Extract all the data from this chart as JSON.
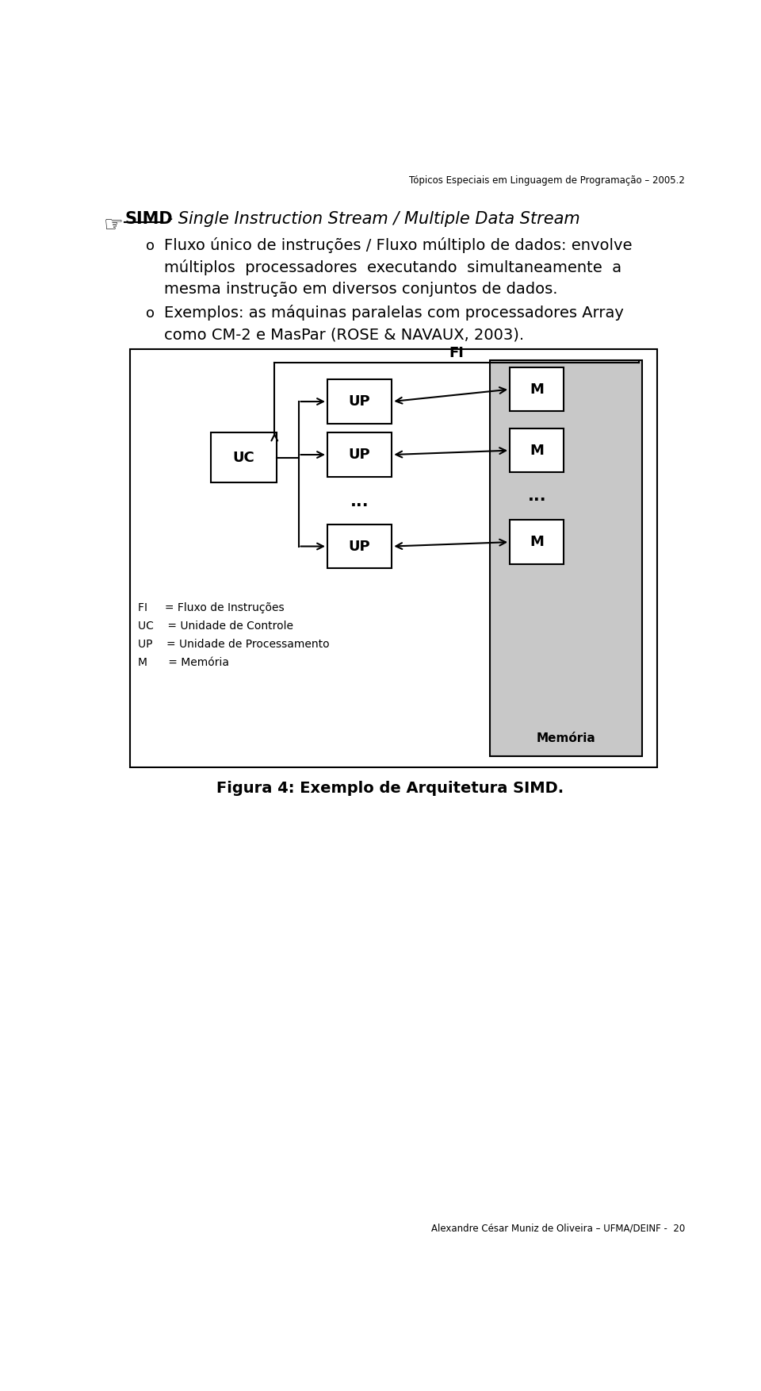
{
  "bg_color": "#ffffff",
  "header_text": "Tópicos Especiais em Linguagem de Programação – 2005.2",
  "footer_text": "Alexandre César Muniz de Oliveira – UFMA/DEINF -  20",
  "title_bold": "SIMD",
  "title_rest": " - Single Instruction Stream / Multiple Data Stream",
  "bullet1_line1": "Fluxo único de instruções / Fluxo múltiplo de dados: envolve",
  "bullet1_line2": "múltiplos  processadores  executando  simultaneamente  a",
  "bullet1_line3": "mesma instrução em diversos conjuntos de dados.",
  "bullet2_line1": "Exemplos: as máquinas paralelas com processadores Array",
  "bullet2_line2": "como CM-2 e MasPar (ROSE & NAVAUX, 2003).",
  "figure_caption": "Figura 4: Exemplo de Arquitetura SIMD.",
  "legend_fi": "FI     = Fluxo de Instruções",
  "legend_uc": "UC    = Unidade de Controle",
  "legend_up": "UP    = Unidade de Processamento",
  "legend_m": "M      = Memória",
  "memory_label": "Memória",
  "label_uc": "UC",
  "label_up": "UP",
  "label_m": "M",
  "label_fi": "FI",
  "dots": "..."
}
